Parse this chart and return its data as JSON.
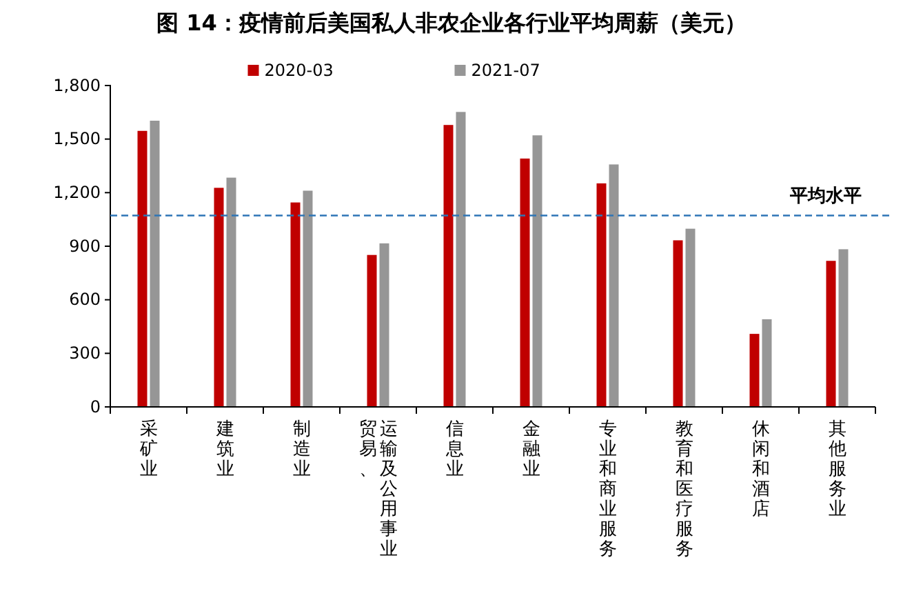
{
  "chart_data": {
    "type": "bar",
    "title": "图 14：疫情前后美国私人非农企业各行业平均周薪（美元）",
    "categories": [
      "采矿业",
      "建筑业",
      "制造业",
      "贸易、运输及公用事业",
      "信息业",
      "金融业",
      "专业和商业服务",
      "教育和医疗服务",
      "休闲和酒店",
      "其他服务业"
    ],
    "series": [
      {
        "name": "2020-03",
        "color": "#c00000",
        "values": [
          1546,
          1227,
          1145,
          851,
          1579,
          1391,
          1252,
          933,
          409,
          818
        ]
      },
      {
        "name": "2021-07",
        "color": "#969696",
        "values": [
          1603,
          1284,
          1211,
          916,
          1652,
          1521,
          1358,
          998,
          491,
          883
        ]
      }
    ],
    "ylim": [
      0,
      1800
    ],
    "yticks": [
      {
        "value": 0,
        "label": "0"
      },
      {
        "value": 300,
        "label": "300"
      },
      {
        "value": 600,
        "label": "600"
      },
      {
        "value": 900,
        "label": "900"
      },
      {
        "value": 1200,
        "label": "1,200"
      },
      {
        "value": 1500,
        "label": "1,500"
      },
      {
        "value": 1800,
        "label": "1,800"
      }
    ],
    "ref_lines": [
      {
        "axis": "y",
        "value": 1072,
        "label": "平均水平",
        "color": "#2e75b6",
        "line_style": "dashed"
      }
    ],
    "legend": "top",
    "grid": false
  }
}
